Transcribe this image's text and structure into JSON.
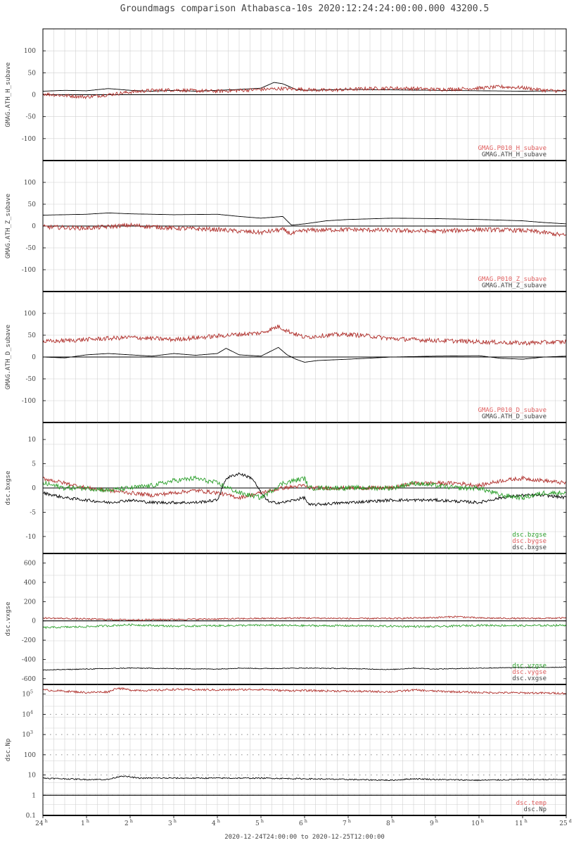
{
  "title": "Groundmags comparison Athabasca-10s 2020:12:24:24:00:00.000 43200.5",
  "footer": "2020-12-24T24:00:00 to 2020-12-25T12:00:00",
  "colors": {
    "black": "#000000",
    "red": "#b0302c",
    "green": "#2ca02c",
    "grid": "#d0d0d0",
    "axis": "#000000"
  },
  "x_ticks": [
    {
      "label": "24",
      "sup": "h"
    },
    {
      "label": "1",
      "sup": "h"
    },
    {
      "label": "2",
      "sup": "h"
    },
    {
      "label": "3",
      "sup": "h"
    },
    {
      "label": "4",
      "sup": "h"
    },
    {
      "label": "5",
      "sup": "h"
    },
    {
      "label": "6",
      "sup": "h"
    },
    {
      "label": "7",
      "sup": "h"
    },
    {
      "label": "8",
      "sup": "h"
    },
    {
      "label": "9",
      "sup": "h"
    },
    {
      "label": "10",
      "sup": "h"
    },
    {
      "label": "11",
      "sup": "h"
    },
    {
      "label": "25",
      "sup": "d"
    }
  ],
  "chart_data": [
    {
      "type": "line",
      "ylabel": "GMAG.ATH_H_subave",
      "ylim": [
        -150,
        150
      ],
      "yticks": [
        {
          "v": 100,
          "label": "100"
        },
        {
          "v": 50,
          "label": "50"
        },
        {
          "v": 0,
          "label": "0"
        },
        {
          "v": -50,
          "label": "-50"
        },
        {
          "v": -100,
          "label": "-100"
        }
      ],
      "legend": [
        {
          "text": "GMAG.P010_H_subave",
          "color": "#e06060"
        },
        {
          "text": "GMAG.ATH_H_subave",
          "color": "#444444"
        }
      ],
      "series": [
        {
          "name": "GMAG.ATH_H_subave",
          "color": "#000000",
          "x": [
            0,
            0.5,
            1,
            1.5,
            2,
            2.5,
            3,
            3.5,
            4,
            4.5,
            5,
            5.3,
            5.5,
            5.8,
            6,
            7,
            8,
            9,
            10,
            11,
            12
          ],
          "y": [
            8,
            10,
            9,
            14,
            10,
            8,
            10,
            8,
            10,
            12,
            15,
            28,
            25,
            12,
            10,
            12,
            11,
            10,
            9,
            8,
            9
          ]
        },
        {
          "name": "GMAG.P010_H_subave",
          "color": "#b0302c",
          "noise": 4,
          "x": [
            0,
            0.5,
            1,
            1.5,
            2,
            2.5,
            3,
            3.5,
            4,
            4.5,
            5,
            5.5,
            6,
            6.5,
            7,
            7.5,
            8,
            8.5,
            9,
            9.5,
            10,
            10.5,
            11,
            11.5,
            12
          ],
          "y": [
            2,
            -2,
            -5,
            0,
            6,
            10,
            11,
            9,
            8,
            10,
            12,
            14,
            12,
            10,
            12,
            14,
            15,
            14,
            12,
            13,
            15,
            18,
            16,
            10,
            8
          ]
        }
      ]
    },
    {
      "type": "line",
      "ylabel": "GMAG.ATH_Z_subave",
      "ylim": [
        -150,
        150
      ],
      "yticks": [
        {
          "v": 100,
          "label": "100"
        },
        {
          "v": 50,
          "label": "50"
        },
        {
          "v": 0,
          "label": "0"
        },
        {
          "v": -50,
          "label": "-50"
        },
        {
          "v": -100,
          "label": "-100"
        }
      ],
      "legend": [
        {
          "text": "GMAG.P010_Z_subave",
          "color": "#e06060"
        },
        {
          "text": "GMAG.ATH_Z_subave",
          "color": "#444444"
        }
      ],
      "series": [
        {
          "name": "GMAG.ATH_Z_subave",
          "color": "#000000",
          "x": [
            0,
            1,
            1.5,
            2,
            3,
            4,
            4.5,
            5,
            5.5,
            5.7,
            6,
            6.5,
            7,
            8,
            9,
            10,
            11,
            11.5,
            12
          ],
          "y": [
            25,
            27,
            30,
            28,
            26,
            27,
            22,
            18,
            22,
            2,
            5,
            12,
            15,
            18,
            17,
            15,
            12,
            8,
            5
          ]
        },
        {
          "name": "GMAG.P010_Z_subave",
          "color": "#b0302c",
          "noise": 5,
          "x": [
            0,
            1,
            2,
            3,
            4,
            4.5,
            5,
            5.5,
            5.7,
            6,
            7,
            8,
            9,
            10,
            11,
            11.5,
            12
          ],
          "y": [
            -2,
            -5,
            2,
            -5,
            -8,
            -12,
            -15,
            -8,
            -18,
            -10,
            -8,
            -10,
            -12,
            -8,
            -10,
            -15,
            -22
          ]
        }
      ]
    },
    {
      "type": "line",
      "ylabel": "GMAG.ATH_D_subave",
      "ylim": [
        -150,
        150
      ],
      "yticks": [
        {
          "v": 100,
          "label": "100"
        },
        {
          "v": 50,
          "label": "50"
        },
        {
          "v": 0,
          "label": "0"
        },
        {
          "v": -50,
          "label": "-50"
        },
        {
          "v": -100,
          "label": "-100"
        }
      ],
      "legend": [
        {
          "text": "GMAG.P010_D_subave",
          "color": "#e06060"
        },
        {
          "text": "GMAG.ATH_D_subave",
          "color": "#444444"
        }
      ],
      "series": [
        {
          "name": "GMAG.ATH_D_subave",
          "color": "#000000",
          "x": [
            0,
            0.5,
            1,
            1.5,
            2,
            2.5,
            3,
            3.5,
            4,
            4.2,
            4.5,
            5,
            5.4,
            5.6,
            5.8,
            6,
            6.3,
            7,
            8,
            9,
            10,
            10.5,
            11,
            11.5,
            12
          ],
          "y": [
            0,
            -2,
            5,
            8,
            5,
            2,
            8,
            4,
            8,
            20,
            5,
            2,
            22,
            5,
            -5,
            -12,
            -8,
            -5,
            0,
            2,
            3,
            -3,
            -5,
            0,
            2
          ]
        },
        {
          "name": "GMAG.P010_D_subave",
          "color": "#b0302c",
          "noise": 5,
          "x": [
            0,
            1,
            2,
            3,
            4,
            4.5,
            5,
            5.4,
            5.6,
            6,
            6.5,
            7,
            7.5,
            8,
            9,
            10,
            11,
            12
          ],
          "y": [
            35,
            40,
            45,
            40,
            48,
            52,
            55,
            70,
            60,
            45,
            50,
            52,
            48,
            42,
            38,
            35,
            32,
            35
          ]
        }
      ]
    },
    {
      "type": "line",
      "ylabel": "dsc.bxgse",
      "ylim": [
        -13.5,
        13.5
      ],
      "yticks": [
        {
          "v": 10,
          "label": "10"
        },
        {
          "v": 5,
          "label": "5"
        },
        {
          "v": 0,
          "label": "0"
        },
        {
          "v": -5,
          "label": "-5"
        },
        {
          "v": -10,
          "label": "-10"
        }
      ],
      "legend": [
        {
          "text": "dsc.bzgse",
          "color": "#2ca02c"
        },
        {
          "text": "dsc.bygse",
          "color": "#e06060"
        },
        {
          "text": "dsc.bxgse",
          "color": "#444444"
        }
      ],
      "series": [
        {
          "name": "dsc.bxgse",
          "color": "#000000",
          "noise": 0.3,
          "x": [
            0,
            0.5,
            1,
            1.5,
            2,
            2.5,
            3,
            3.5,
            4,
            4.2,
            4.5,
            4.8,
            5,
            5.2,
            5.5,
            6,
            6.1,
            7,
            8,
            8.5,
            9,
            10,
            10.5,
            11,
            11.5,
            12
          ],
          "y": [
            -1,
            -2,
            -2.5,
            -3,
            -2.5,
            -3,
            -3,
            -3,
            -2.5,
            2,
            3,
            2,
            -1,
            -3,
            -3,
            -2,
            -3.5,
            -3,
            -2.5,
            -2.5,
            -2.5,
            -3,
            -2,
            -1.5,
            -1.5,
            -2
          ]
        },
        {
          "name": "dsc.bygse",
          "color": "#b0302c",
          "noise": 0.4,
          "x": [
            0,
            0.5,
            1,
            1.5,
            2,
            2.5,
            3,
            3.5,
            4,
            4.5,
            5,
            5.5,
            6,
            6.1,
            7,
            8,
            8.5,
            9,
            9.5,
            10,
            10.5,
            11,
            11.5,
            12
          ],
          "y": [
            2,
            1,
            0,
            -0.5,
            -1,
            -1.5,
            -1,
            -0.5,
            -1,
            -2,
            -1,
            0,
            0.5,
            0,
            0,
            0,
            1,
            1,
            1,
            0.5,
            1.5,
            2,
            1.5,
            1
          ]
        },
        {
          "name": "dsc.bzgse",
          "color": "#2ca02c",
          "noise": 0.5,
          "x": [
            0,
            0.5,
            1,
            1.5,
            2,
            2.5,
            3,
            3.5,
            4,
            4.5,
            5,
            5.5,
            6,
            6.1,
            7,
            8,
            8.5,
            9,
            9.5,
            10,
            10.5,
            11,
            11.5,
            12
          ],
          "y": [
            1,
            0,
            0,
            -0.5,
            0,
            0.5,
            1.5,
            2,
            1,
            -1,
            -2,
            1,
            2,
            0,
            0,
            0,
            1,
            0.5,
            0,
            0,
            -1.5,
            -2,
            -1,
            -1
          ]
        }
      ]
    },
    {
      "type": "line",
      "ylabel": "dsc.vxgse",
      "ylim": [
        -660,
        700
      ],
      "yticks": [
        {
          "v": 600,
          "label": "600"
        },
        {
          "v": 400,
          "label": "400"
        },
        {
          "v": 200,
          "label": "200"
        },
        {
          "v": 0,
          "label": "0"
        },
        {
          "v": -200,
          "label": "-200"
        },
        {
          "v": -400,
          "label": "-400"
        },
        {
          "v": -600,
          "label": "-600"
        }
      ],
      "legend": [
        {
          "text": "dsc.vzgse",
          "color": "#2ca02c"
        },
        {
          "text": "dsc.vygse",
          "color": "#e06060"
        },
        {
          "text": "dsc.vxgse",
          "color": "#444444"
        }
      ],
      "series": [
        {
          "name": "dsc.vxgse",
          "color": "#000000",
          "noise": 4,
          "x": [
            0,
            1,
            2,
            3,
            4,
            4.5,
            5,
            6,
            7,
            8,
            8.5,
            9,
            10,
            11,
            12
          ],
          "y": [
            -510,
            -500,
            -490,
            -495,
            -500,
            -490,
            -495,
            -490,
            -495,
            -505,
            -490,
            -500,
            -490,
            -485,
            -480
          ]
        },
        {
          "name": "dsc.vygse",
          "color": "#b0302c",
          "noise": 8,
          "x": [
            0,
            1,
            2,
            3,
            4,
            5,
            6,
            7,
            8,
            9,
            9.5,
            10,
            11,
            12
          ],
          "y": [
            30,
            20,
            10,
            15,
            20,
            25,
            30,
            25,
            25,
            35,
            45,
            30,
            25,
            30
          ]
        },
        {
          "name": "dsc.vzgse",
          "color": "#2ca02c",
          "noise": 10,
          "x": [
            0,
            1,
            2,
            3,
            4,
            5,
            6,
            7,
            8,
            9,
            10,
            11,
            12
          ],
          "y": [
            -70,
            -60,
            -40,
            -55,
            -50,
            -45,
            -50,
            -50,
            -55,
            -60,
            -45,
            -50,
            -45
          ]
        }
      ]
    },
    {
      "type": "line",
      "ylabel": "dsc.Np",
      "log": true,
      "ylim": [
        0.1,
        300000
      ],
      "yticks": [
        {
          "v": 100000,
          "label": "10",
          "sup": "5"
        },
        {
          "v": 10000,
          "label": "10",
          "sup": "4"
        },
        {
          "v": 1000,
          "label": "10",
          "sup": "3"
        },
        {
          "v": 100,
          "label": "100"
        },
        {
          "v": 10,
          "label": "10"
        },
        {
          "v": 1,
          "label": "1"
        },
        {
          "v": 0.1,
          "label": "0.1"
        }
      ],
      "legend": [
        {
          "text": "dsc.temp",
          "color": "#e06060"
        },
        {
          "text": "dsc.Np",
          "color": "#444444"
        }
      ],
      "series": [
        {
          "name": "dsc.temp",
          "color": "#b0302c",
          "noise": 0.05,
          "x": [
            0,
            0.5,
            1,
            1.5,
            1.7,
            2,
            2.5,
            3,
            4,
            5,
            5.5,
            6,
            7,
            8,
            8.5,
            9,
            10,
            11,
            12
          ],
          "y": [
            160000,
            140000,
            120000,
            130000,
            200000,
            160000,
            150000,
            170000,
            160000,
            170000,
            150000,
            150000,
            140000,
            130000,
            160000,
            140000,
            120000,
            115000,
            110000
          ]
        },
        {
          "name": "dsc.Np",
          "color": "#000000",
          "noise": 0.03,
          "x": [
            0,
            1,
            1.5,
            1.8,
            2.2,
            3,
            4,
            5,
            6,
            7,
            8,
            8.5,
            9,
            10,
            11,
            12
          ],
          "y": [
            7,
            6,
            6,
            9,
            7,
            7,
            7,
            7,
            6.5,
            6,
            5.5,
            6.5,
            6,
            5.5,
            6,
            6
          ]
        }
      ]
    }
  ]
}
